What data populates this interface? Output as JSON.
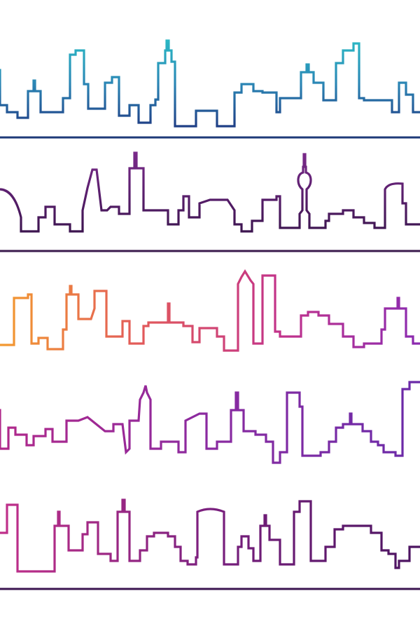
{
  "artwork": {
    "panels": [
      {
        "id": "row-1",
        "gradient": [
          "#2bb7c4",
          "#2a86b5",
          "#1f3f86"
        ],
        "ground_color": "#1e3a78"
      },
      {
        "id": "row-2",
        "gradient": [
          "#7a2a8a",
          "#5b1f6e",
          "#3d1550"
        ],
        "ground_color": "#3a1a4c"
      },
      {
        "id": "row-3",
        "gradient": [
          "#f39a2e",
          "#e25a5a",
          "#c2328a",
          "#8a2ab0"
        ],
        "ground_color": "#d0417a"
      },
      {
        "id": "row-4",
        "gradient": [
          "#b0288a",
          "#8a2aa0",
          "#6a2aa8"
        ],
        "ground_color": "#5b2b8e"
      },
      {
        "id": "row-5",
        "gradient": [
          "#c0308a",
          "#7a1f7e",
          "#4b1460"
        ],
        "ground_color": "#3b1550"
      }
    ]
  }
}
